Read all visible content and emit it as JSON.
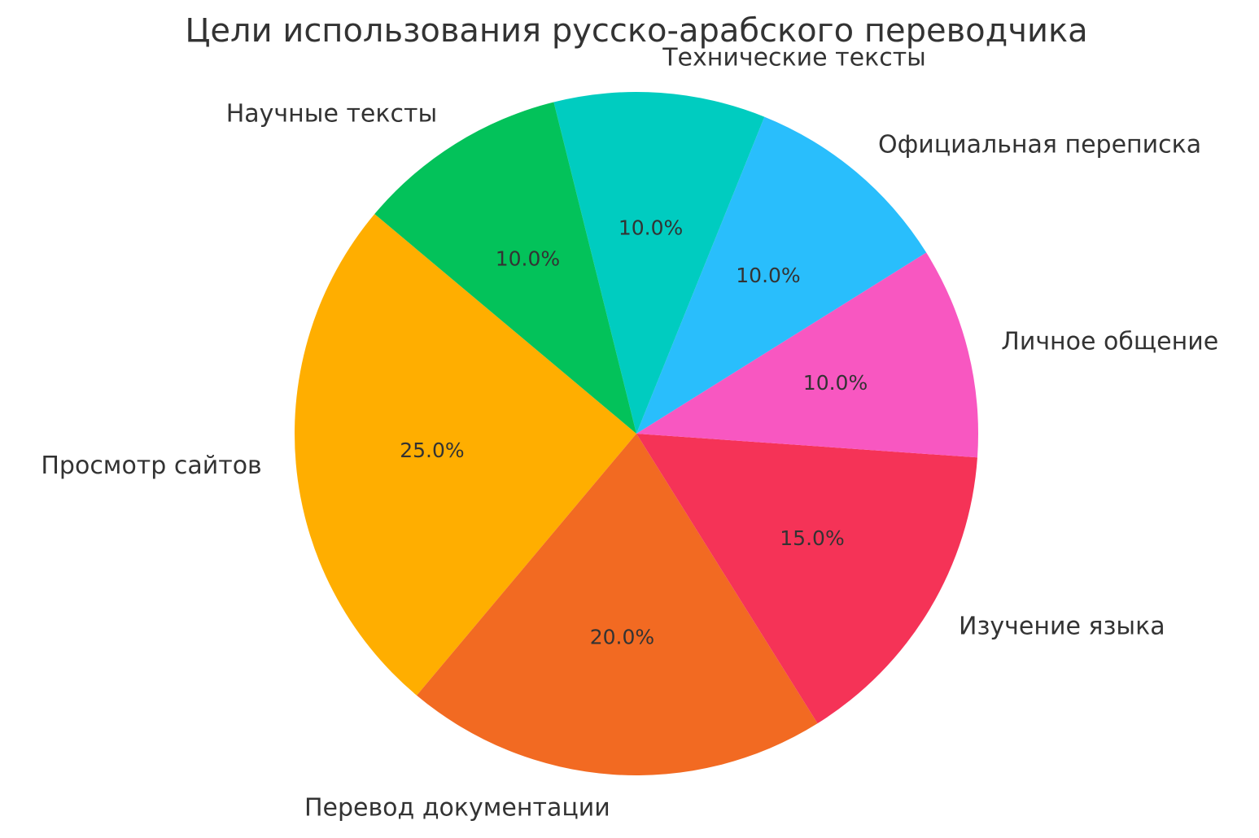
{
  "chart_data": {
    "type": "pie",
    "title": "Цели использования русско-арабского переводчика",
    "categories": [
      "Просмотр сайтов",
      "Перевод документации",
      "Изучение языка",
      "Личное общение",
      "Официальная переписка",
      "Технические тексты",
      "Научные тексты"
    ],
    "values": [
      25,
      20,
      15,
      10,
      10,
      10,
      10
    ],
    "value_labels": [
      "25.0%",
      "20.0%",
      "15.0%",
      "10.0%",
      "10.0%",
      "10.0%",
      "10.0%"
    ],
    "colors": [
      "#FFAE00",
      "#F26A22",
      "#F53357",
      "#F857C1",
      "#29BEFC",
      "#00CCC0",
      "#03C25A"
    ],
    "startangle": 140
  }
}
